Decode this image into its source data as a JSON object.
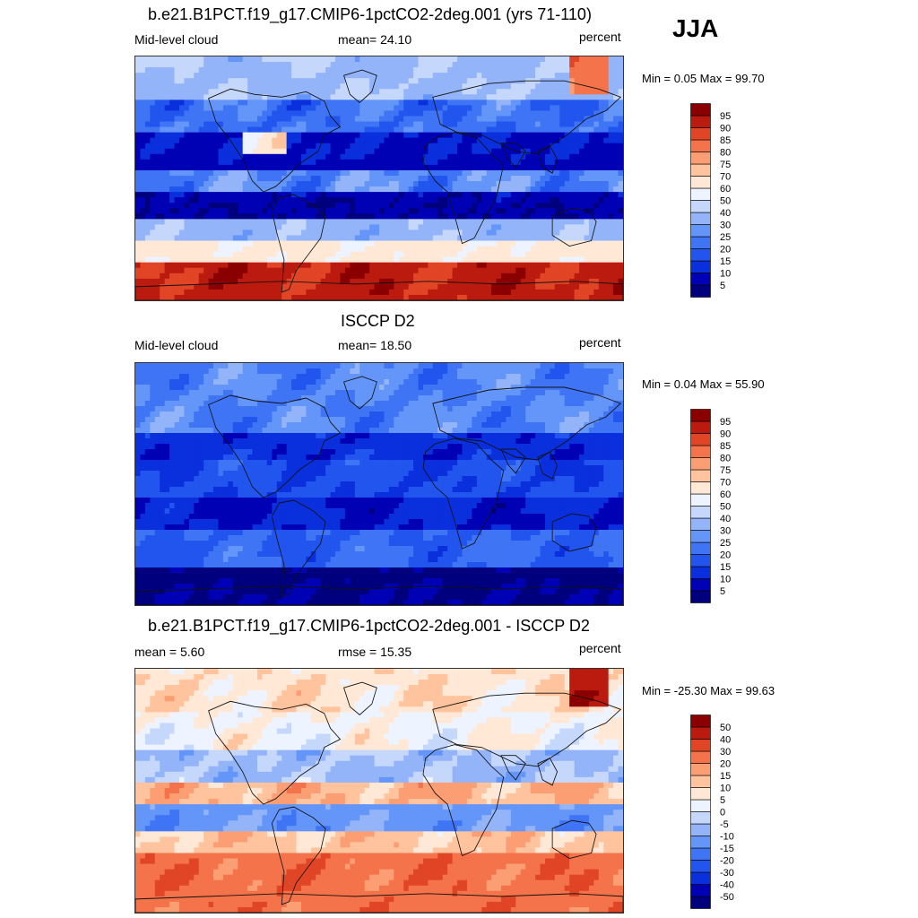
{
  "season": "JJA",
  "panels": [
    {
      "title": "b.e21.B1PCT.f19_g17.CMIP6-1pctCO2-2deg.001 (yrs 71-110)",
      "left_label": "Mid-level cloud",
      "center_label": "mean=  24.10",
      "units": "percent",
      "minmax": "Min =   0.05 Max =  99.70",
      "kind": "model"
    },
    {
      "title": "ISCCP D2",
      "left_label": "Mid-level cloud",
      "center_label": "mean=  18.50",
      "units": "percent",
      "minmax": "Min =   0.04 Max =  55.90",
      "kind": "obs"
    },
    {
      "title": "b.e21.B1PCT.f19_g17.CMIP6-1pctCO2-2deg.001 - ISCCP D2",
      "left_label": "mean =   5.60",
      "center_label": "rmse =  15.35",
      "units": "percent",
      "minmax": "Min = -25.30 Max =  99.63",
      "kind": "diff"
    }
  ],
  "chart_data": [
    {
      "type": "heatmap",
      "title": "b.e21.B1PCT.f19_g17.CMIP6-1pctCO2-2deg.001 (yrs 71-110)",
      "variable": "Mid-level cloud",
      "units": "percent",
      "mean": 24.1,
      "min": 0.05,
      "max": 99.7,
      "colorbar_levels": [
        5,
        10,
        15,
        20,
        25,
        30,
        40,
        50,
        60,
        70,
        75,
        80,
        85,
        90,
        95
      ],
      "colorbar_colors": [
        "#00007f",
        "#0000b4",
        "#0a2fdc",
        "#2155ee",
        "#3f74f5",
        "#6495f8",
        "#94b4fa",
        "#c5d8fc",
        "#eef4ff",
        "#ffe8d6",
        "#ffc49e",
        "#fc9e74",
        "#f4734a",
        "#e04525",
        "#bb1a0e",
        "#8a0000"
      ]
    },
    {
      "type": "heatmap",
      "title": "ISCCP D2",
      "variable": "Mid-level cloud",
      "units": "percent",
      "mean": 18.5,
      "min": 0.04,
      "max": 55.9,
      "colorbar_levels": [
        5,
        10,
        15,
        20,
        25,
        30,
        40,
        50,
        60,
        70,
        75,
        80,
        85,
        90,
        95
      ],
      "colorbar_colors": [
        "#00007f",
        "#0000b4",
        "#0a2fdc",
        "#2155ee",
        "#3f74f5",
        "#6495f8",
        "#94b4fa",
        "#c5d8fc",
        "#eef4ff",
        "#ffe8d6",
        "#ffc49e",
        "#fc9e74",
        "#f4734a",
        "#e04525",
        "#bb1a0e",
        "#8a0000"
      ]
    },
    {
      "type": "heatmap",
      "title": "b.e21.B1PCT.f19_g17.CMIP6-1pctCO2-2deg.001 - ISCCP D2",
      "units": "percent",
      "mean": 5.6,
      "rmse": 15.35,
      "min": -25.3,
      "max": 99.63,
      "colorbar_levels": [
        -50,
        -40,
        -30,
        -20,
        -15,
        -10,
        -5,
        0,
        5,
        10,
        15,
        20,
        30,
        40,
        50
      ],
      "colorbar_colors": [
        "#00007f",
        "#0000b4",
        "#0a2fdc",
        "#2155ee",
        "#3f74f5",
        "#6495f8",
        "#94b4fa",
        "#c5d8fc",
        "#eef4ff",
        "#ffe8d6",
        "#ffc49e",
        "#fc9e74",
        "#f4734a",
        "#e04525",
        "#bb1a0e",
        "#8a0000"
      ]
    }
  ]
}
